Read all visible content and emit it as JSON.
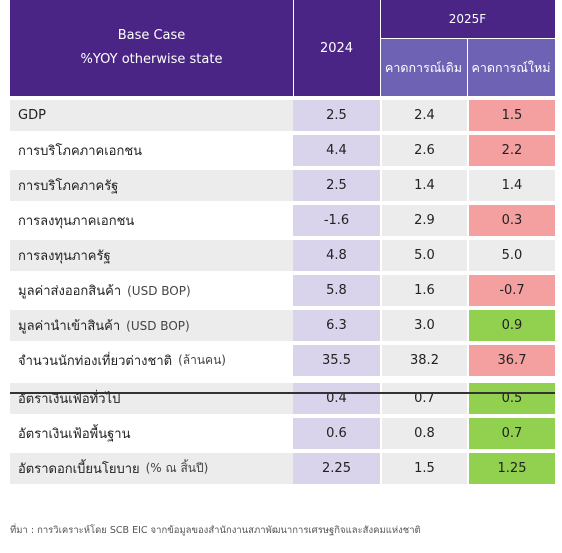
{
  "header": {
    "line1": "Base Case",
    "line2": "%YOY otherwise state",
    "col_2024": "2024",
    "col_2025": "2025F",
    "col_old": "คาดการณ์เดิม",
    "col_new": "คาดการณ์ใหม่"
  },
  "rows": [
    {
      "label": "GDP",
      "unit": "",
      "v2024": "2.5",
      "old": "2.4",
      "new": "1.5",
      "new_color": "#f4a0a0"
    },
    {
      "label": "การบริโภคภาคเอกชน",
      "unit": "",
      "v2024": "4.4",
      "old": "2.6",
      "new": "2.2",
      "new_color": "#f4a0a0"
    },
    {
      "label": "การบริโภคภาครัฐ",
      "unit": "",
      "v2024": "2.5",
      "old": "1.4",
      "new": "1.4",
      "new_color": "#ececec"
    },
    {
      "label": "การลงทุนภาคเอกชน",
      "unit": "",
      "v2024": "-1.6",
      "old": "2.9",
      "new": "0.3",
      "new_color": "#f4a0a0"
    },
    {
      "label": "การลงทุนภาครัฐ",
      "unit": "",
      "v2024": "4.8",
      "old": "5.0",
      "new": "5.0",
      "new_color": "#ececec"
    },
    {
      "label": "มูลค่าส่งออกสินค้า",
      "unit": "(USD BOP)",
      "v2024": "5.8",
      "old": "1.6",
      "new": "-0.7",
      "new_color": "#f4a0a0"
    },
    {
      "label": "มูลค่านำเข้าสินค้า",
      "unit": "(USD BOP)",
      "v2024": "6.3",
      "old": "3.0",
      "new": "0.9",
      "new_color": "#92d050"
    },
    {
      "label": "จำนวนนักท่องเที่ยวต่างชาติ",
      "unit": "(ล้านคน)",
      "v2024": "35.5",
      "old": "38.2",
      "new": "36.7",
      "new_color": "#f4a0a0"
    },
    {
      "label": "อัตราเงินเฟ้อทั่วไป",
      "unit": "",
      "v2024": "0.4",
      "old": "0.7",
      "new": "0.5",
      "new_color": "#92d050"
    },
    {
      "label": "อัตราเงินเฟ้อพื้นฐาน",
      "unit": "",
      "v2024": "0.6",
      "old": "0.8",
      "new": "0.7",
      "new_color": "#92d050"
    },
    {
      "label": "อัตราดอกเบี้ยนโยบาย",
      "unit": "(% ณ สิ้นปี)",
      "v2024": "2.25",
      "old": "1.5",
      "new": "1.25",
      "new_color": "#92d050"
    }
  ],
  "footnote": "ที่มา : การวิเคราะห์โดย SCB EIC จากข้อมูลของสำนักงานสภาพัฒนาการเศรษฐกิจและสังคมแห่งชาติ",
  "colors": {
    "header_dark": "#4a2585",
    "header_light": "#6d62b3",
    "col_2024_bg": "#d9d4ec",
    "down": "#f4a0a0",
    "up": "#92d050",
    "same": "#ececec"
  }
}
